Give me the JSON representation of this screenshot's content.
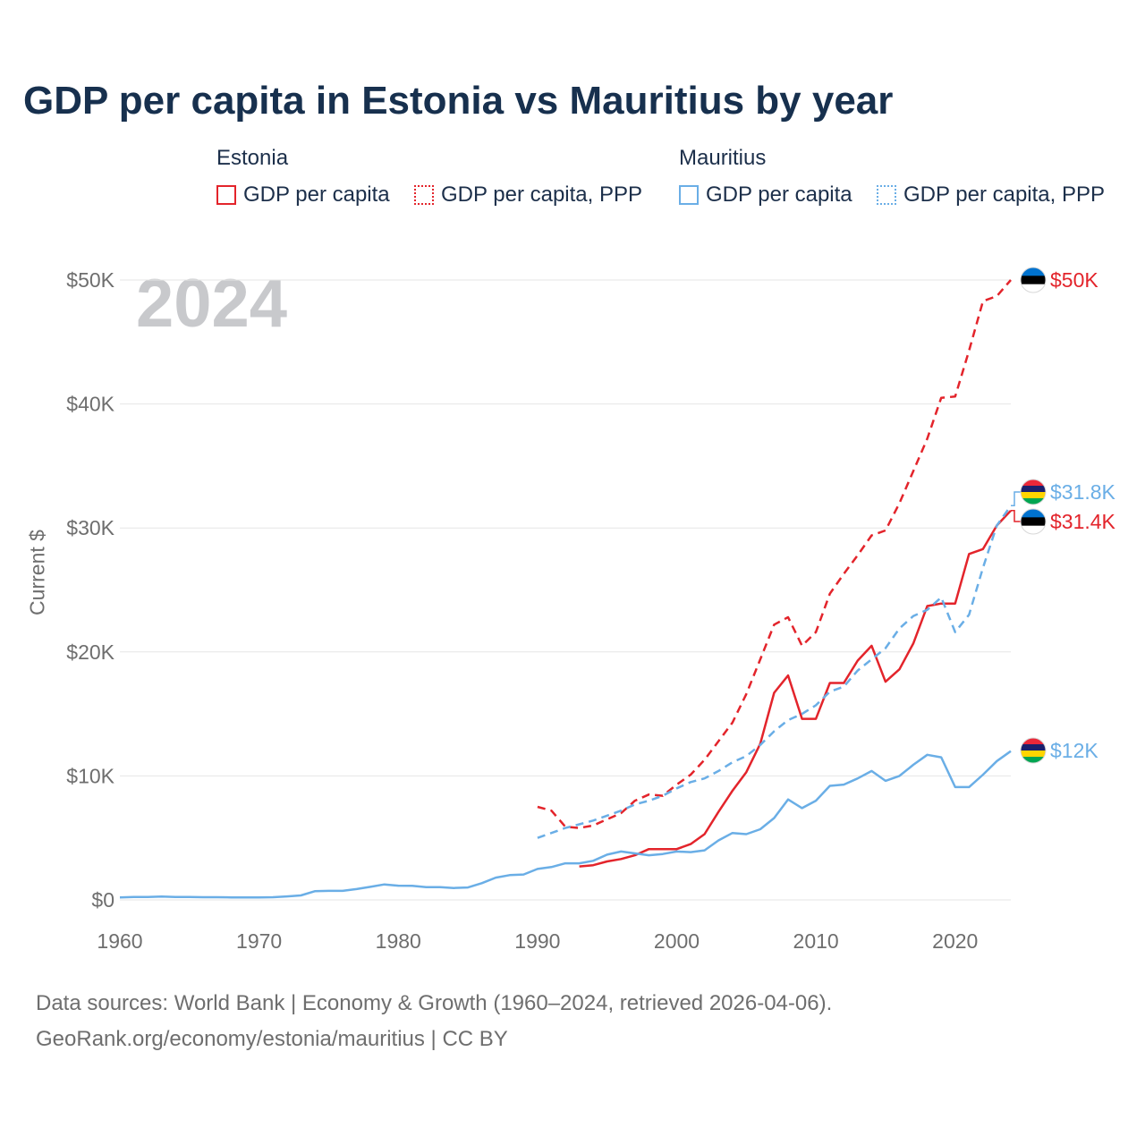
{
  "title": "GDP per capita in Estonia vs Mauritius by year",
  "year_watermark": "2024",
  "legend": {
    "groups": [
      {
        "name": "Estonia",
        "items": [
          "GDP per capita",
          "GDP per capita, PPP"
        ]
      },
      {
        "name": "Mauritius",
        "items": [
          "GDP per capita",
          "GDP per capita, PPP"
        ]
      }
    ]
  },
  "colors": {
    "estonia": "#e3242b",
    "mauritius": "#6aaee6",
    "grid": "#e6e6e6",
    "axis_text": "#6e6e6e"
  },
  "footer": {
    "line1": "Data sources: World Bank | Economy & Growth (1960–2024, retrieved 2026-04-06).",
    "line2": "GeoRank.org/economy/estonia/mauritius | CC BY"
  },
  "chart_data": {
    "type": "line",
    "title": "GDP per capita in Estonia vs Mauritius by year",
    "xlabel": "",
    "ylabel": "Current $",
    "xlim": [
      1960,
      2024
    ],
    "ylim": [
      0,
      50000
    ],
    "x_ticks": [
      1960,
      1970,
      1980,
      1990,
      2000,
      2010,
      2020
    ],
    "y_ticks": [
      {
        "value": 0,
        "label": "$0"
      },
      {
        "value": 10000,
        "label": "$10K"
      },
      {
        "value": 20000,
        "label": "$20K"
      },
      {
        "value": 30000,
        "label": "$30K"
      },
      {
        "value": 40000,
        "label": "$40K"
      },
      {
        "value": 50000,
        "label": "$50K"
      }
    ],
    "series": [
      {
        "name": "Estonia GDP per capita, PPP",
        "country": "estonia",
        "style": "dashed",
        "end_label": "$50K",
        "points": [
          [
            1990,
            7500
          ],
          [
            1991,
            7200
          ],
          [
            1992,
            5900
          ],
          [
            1993,
            5800
          ],
          [
            1994,
            6000
          ],
          [
            1995,
            6500
          ],
          [
            1996,
            7000
          ],
          [
            1997,
            8000
          ],
          [
            1998,
            8500
          ],
          [
            1999,
            8400
          ],
          [
            2000,
            9300
          ],
          [
            2001,
            10100
          ],
          [
            2002,
            11300
          ],
          [
            2003,
            12800
          ],
          [
            2004,
            14300
          ],
          [
            2005,
            16600
          ],
          [
            2006,
            19400
          ],
          [
            2007,
            22200
          ],
          [
            2008,
            22800
          ],
          [
            2009,
            20500
          ],
          [
            2010,
            21600
          ],
          [
            2011,
            24700
          ],
          [
            2012,
            26300
          ],
          [
            2013,
            27800
          ],
          [
            2014,
            29400
          ],
          [
            2015,
            29800
          ],
          [
            2016,
            32000
          ],
          [
            2017,
            34600
          ],
          [
            2018,
            37200
          ],
          [
            2019,
            40500
          ],
          [
            2020,
            40600
          ],
          [
            2021,
            44300
          ],
          [
            2022,
            48300
          ],
          [
            2023,
            48700
          ],
          [
            2024,
            50000
          ]
        ]
      },
      {
        "name": "Estonia GDP per capita",
        "country": "estonia",
        "style": "solid",
        "end_label": "$31.4K",
        "points": [
          [
            1993,
            2700
          ],
          [
            1994,
            2800
          ],
          [
            1995,
            3100
          ],
          [
            1996,
            3300
          ],
          [
            1997,
            3600
          ],
          [
            1998,
            4100
          ],
          [
            1999,
            4100
          ],
          [
            2000,
            4100
          ],
          [
            2001,
            4500
          ],
          [
            2002,
            5300
          ],
          [
            2003,
            7100
          ],
          [
            2004,
            8800
          ],
          [
            2005,
            10300
          ],
          [
            2006,
            12600
          ],
          [
            2007,
            16700
          ],
          [
            2008,
            18100
          ],
          [
            2009,
            14600
          ],
          [
            2010,
            14600
          ],
          [
            2011,
            17500
          ],
          [
            2012,
            17500
          ],
          [
            2013,
            19300
          ],
          [
            2014,
            20500
          ],
          [
            2015,
            17600
          ],
          [
            2016,
            18600
          ],
          [
            2017,
            20700
          ],
          [
            2018,
            23700
          ],
          [
            2019,
            23900
          ],
          [
            2020,
            23900
          ],
          [
            2021,
            27900
          ],
          [
            2022,
            28300
          ],
          [
            2023,
            30200
          ],
          [
            2024,
            31400
          ]
        ]
      },
      {
        "name": "Mauritius GDP per capita, PPP",
        "country": "mauritius",
        "style": "dashed",
        "end_label": "$31.8K",
        "points": [
          [
            1990,
            5000
          ],
          [
            1991,
            5400
          ],
          [
            1992,
            5800
          ],
          [
            1993,
            6100
          ],
          [
            1994,
            6400
          ],
          [
            1995,
            6800
          ],
          [
            1996,
            7200
          ],
          [
            1997,
            7700
          ],
          [
            1998,
            8000
          ],
          [
            1999,
            8400
          ],
          [
            2000,
            9000
          ],
          [
            2001,
            9500
          ],
          [
            2002,
            9800
          ],
          [
            2003,
            10400
          ],
          [
            2004,
            11100
          ],
          [
            2005,
            11600
          ],
          [
            2006,
            12500
          ],
          [
            2007,
            13600
          ],
          [
            2008,
            14500
          ],
          [
            2009,
            15000
          ],
          [
            2010,
            15700
          ],
          [
            2011,
            16800
          ],
          [
            2012,
            17200
          ],
          [
            2013,
            18500
          ],
          [
            2014,
            19400
          ],
          [
            2015,
            20300
          ],
          [
            2016,
            21900
          ],
          [
            2017,
            22900
          ],
          [
            2018,
            23400
          ],
          [
            2019,
            24400
          ],
          [
            2020,
            21600
          ],
          [
            2021,
            23000
          ],
          [
            2022,
            26800
          ],
          [
            2023,
            30200
          ],
          [
            2024,
            31800
          ]
        ]
      },
      {
        "name": "Mauritius GDP per capita",
        "country": "mauritius",
        "style": "solid",
        "end_label": "$12K",
        "points": [
          [
            1960,
            200
          ],
          [
            1961,
            230
          ],
          [
            1962,
            230
          ],
          [
            1963,
            270
          ],
          [
            1964,
            230
          ],
          [
            1965,
            230
          ],
          [
            1966,
            220
          ],
          [
            1967,
            220
          ],
          [
            1968,
            200
          ],
          [
            1969,
            200
          ],
          [
            1970,
            200
          ],
          [
            1971,
            220
          ],
          [
            1972,
            280
          ],
          [
            1973,
            360
          ],
          [
            1974,
            700
          ],
          [
            1975,
            730
          ],
          [
            1976,
            730
          ],
          [
            1977,
            870
          ],
          [
            1978,
            1050
          ],
          [
            1979,
            1250
          ],
          [
            1980,
            1150
          ],
          [
            1981,
            1130
          ],
          [
            1982,
            1030
          ],
          [
            1983,
            1030
          ],
          [
            1984,
            960
          ],
          [
            1985,
            1000
          ],
          [
            1986,
            1350
          ],
          [
            1987,
            1800
          ],
          [
            1988,
            2000
          ],
          [
            1989,
            2050
          ],
          [
            1990,
            2500
          ],
          [
            1991,
            2650
          ],
          [
            1992,
            2950
          ],
          [
            1993,
            2950
          ],
          [
            1994,
            3150
          ],
          [
            1995,
            3650
          ],
          [
            1996,
            3900
          ],
          [
            1997,
            3750
          ],
          [
            1998,
            3600
          ],
          [
            1999,
            3700
          ],
          [
            2000,
            3900
          ],
          [
            2001,
            3850
          ],
          [
            2002,
            4000
          ],
          [
            2003,
            4800
          ],
          [
            2004,
            5400
          ],
          [
            2005,
            5300
          ],
          [
            2006,
            5700
          ],
          [
            2007,
            6600
          ],
          [
            2008,
            8100
          ],
          [
            2009,
            7400
          ],
          [
            2010,
            8000
          ],
          [
            2011,
            9200
          ],
          [
            2012,
            9300
          ],
          [
            2013,
            9800
          ],
          [
            2014,
            10400
          ],
          [
            2015,
            9600
          ],
          [
            2016,
            10000
          ],
          [
            2017,
            10900
          ],
          [
            2018,
            11700
          ],
          [
            2019,
            11500
          ],
          [
            2020,
            9100
          ],
          [
            2021,
            9100
          ],
          [
            2022,
            10100
          ],
          [
            2023,
            11200
          ],
          [
            2024,
            12000
          ]
        ]
      }
    ]
  }
}
